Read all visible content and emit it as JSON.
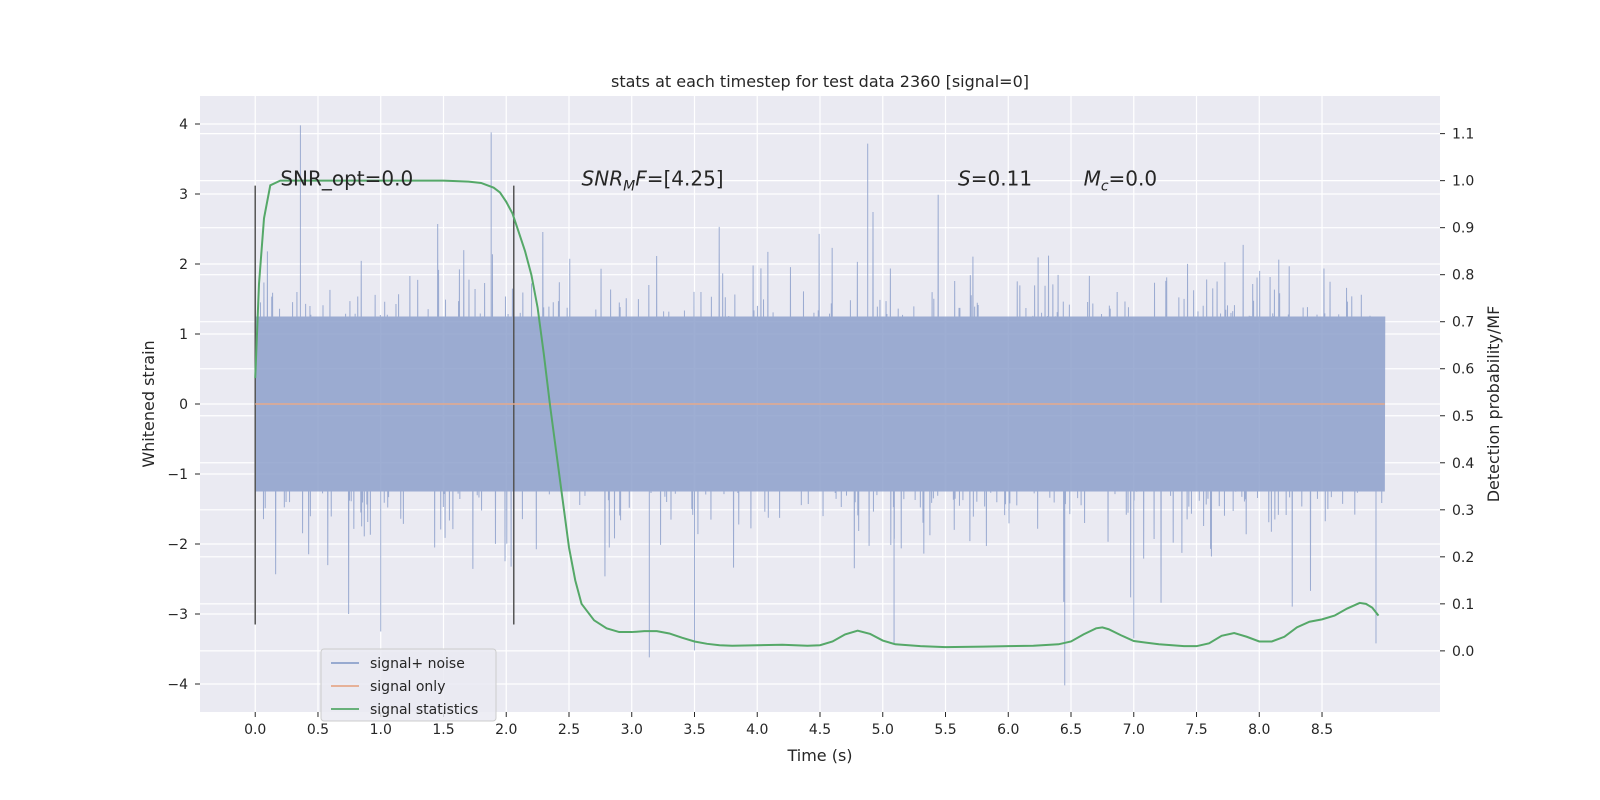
{
  "chart_data": {
    "type": "line",
    "title": "stats at each timestep for test data 2360 [signal=0]",
    "xlabel": "Time (s)",
    "ylabel": "Whitened strain",
    "ylabel_right": "Detection probability/MF",
    "xlim": [
      -0.44,
      9.44
    ],
    "ylim": [
      -4.4,
      4.4
    ],
    "ylim_right": [
      -0.13,
      1.18
    ],
    "x_ticks": [
      0.0,
      0.5,
      1.0,
      1.5,
      2.0,
      2.5,
      3.0,
      3.5,
      4.0,
      4.5,
      5.0,
      5.5,
      6.0,
      6.5,
      7.0,
      7.5,
      8.0,
      8.5
    ],
    "x_tick_labels": [
      "0.0",
      "0.5",
      "1.0",
      "1.5",
      "2.0",
      "2.5",
      "3.0",
      "3.5",
      "4.0",
      "4.5",
      "5.0",
      "5.5",
      "6.0",
      "6.5",
      "7.0",
      "7.5",
      "8.0",
      "8.5"
    ],
    "y_ticks": [
      4,
      3,
      2,
      1,
      0,
      -1,
      -2,
      -3,
      -4
    ],
    "y_tick_labels": [
      "4",
      "3",
      "2",
      "1",
      "0",
      "−1",
      "−2",
      "−3",
      "−4"
    ],
    "y_right_ticks": [
      1.1,
      1.0,
      0.9,
      0.8,
      0.7,
      0.6,
      0.5,
      0.4,
      0.3,
      0.2,
      0.1,
      0.0
    ],
    "y_right_tick_labels": [
      "1.1",
      "1.0",
      "0.9",
      "0.8",
      "0.7",
      "0.6",
      "0.5",
      "0.4",
      "0.3",
      "0.2",
      "0.1",
      "0.0"
    ],
    "grid": true,
    "legend_position": "lower-left",
    "series": [
      {
        "name": "signal+ noise",
        "color": "#8da0cb",
        "axis": "left",
        "kind": "noise",
        "x_range": [
          0.0,
          9.0
        ],
        "typical_band": [
          -1.3,
          1.3
        ],
        "peak_envelope": [
          -2.5,
          2.5
        ],
        "extremes": [
          [
            0.36,
            3.98
          ],
          [
            1.88,
            3.88
          ],
          [
            4.88,
            3.72
          ],
          [
            6.45,
            -4.02
          ],
          [
            3.14,
            -3.62
          ],
          [
            3.5,
            -3.52
          ],
          [
            5.09,
            -3.44
          ],
          [
            8.93,
            -3.42
          ],
          [
            7.0,
            -3.35
          ],
          [
            1.0,
            -3.25
          ]
        ]
      },
      {
        "name": "signal only",
        "color": "#e5a98b",
        "axis": "left",
        "kind": "flat",
        "x": [
          0.0,
          9.0
        ],
        "values": [
          0.0,
          0.0
        ]
      },
      {
        "name": "signal statistics",
        "color": "#55a868",
        "axis": "right",
        "kind": "line",
        "x": [
          0.0,
          0.03,
          0.07,
          0.12,
          0.2,
          0.3,
          0.5,
          1.0,
          1.5,
          1.7,
          1.8,
          1.9,
          1.95,
          2.0,
          2.05,
          2.1,
          2.15,
          2.2,
          2.25,
          2.3,
          2.35,
          2.4,
          2.45,
          2.5,
          2.55,
          2.6,
          2.7,
          2.8,
          2.9,
          3.0,
          3.1,
          3.2,
          3.3,
          3.4,
          3.5,
          3.6,
          3.7,
          3.8,
          4.0,
          4.2,
          4.4,
          4.5,
          4.6,
          4.7,
          4.8,
          4.9,
          5.0,
          5.1,
          5.3,
          5.5,
          5.8,
          6.0,
          6.2,
          6.4,
          6.5,
          6.6,
          6.7,
          6.75,
          6.8,
          6.9,
          7.0,
          7.2,
          7.4,
          7.5,
          7.6,
          7.7,
          7.8,
          7.9,
          8.0,
          8.1,
          8.2,
          8.3,
          8.4,
          8.5,
          8.6,
          8.7,
          8.8,
          8.85,
          8.9,
          8.95
        ],
        "values": [
          0.58,
          0.78,
          0.92,
          0.99,
          1.0,
          1.0,
          1.0,
          1.0,
          1.0,
          0.998,
          0.995,
          0.985,
          0.975,
          0.955,
          0.93,
          0.89,
          0.85,
          0.8,
          0.73,
          0.63,
          0.52,
          0.42,
          0.32,
          0.22,
          0.15,
          0.1,
          0.065,
          0.048,
          0.04,
          0.04,
          0.042,
          0.042,
          0.037,
          0.028,
          0.02,
          0.015,
          0.012,
          0.011,
          0.012,
          0.013,
          0.011,
          0.012,
          0.02,
          0.035,
          0.043,
          0.036,
          0.022,
          0.014,
          0.01,
          0.008,
          0.009,
          0.01,
          0.011,
          0.014,
          0.02,
          0.035,
          0.048,
          0.05,
          0.046,
          0.033,
          0.021,
          0.014,
          0.01,
          0.01,
          0.016,
          0.032,
          0.038,
          0.03,
          0.02,
          0.02,
          0.03,
          0.05,
          0.062,
          0.067,
          0.075,
          0.09,
          0.102,
          0.1,
          0.092,
          0.075
        ]
      }
    ],
    "vertical_markers": [
      {
        "x": 0.0,
        "y_range": [
          -3.15,
          3.12
        ],
        "color": "#555555"
      },
      {
        "x": 2.06,
        "y_range": [
          -3.15,
          3.12
        ],
        "color": "#555555"
      }
    ],
    "annotations": [
      {
        "id": "snr-opt",
        "x": 0.2,
        "y": 3.12,
        "plain": "SNR_opt=0.0"
      },
      {
        "id": "snr-mf",
        "x": 2.6,
        "y": 3.12,
        "italic": "SNR",
        "sub": "M",
        "italic_after": "F",
        "rest": "=[4.25]"
      },
      {
        "id": "s-value",
        "x": 5.6,
        "y": 3.12,
        "italic": "S",
        "rest": "=0.11"
      },
      {
        "id": "mc-value",
        "x": 6.6,
        "y": 3.12,
        "italic": "M",
        "sub": "c",
        "rest": "=0.0"
      }
    ]
  }
}
